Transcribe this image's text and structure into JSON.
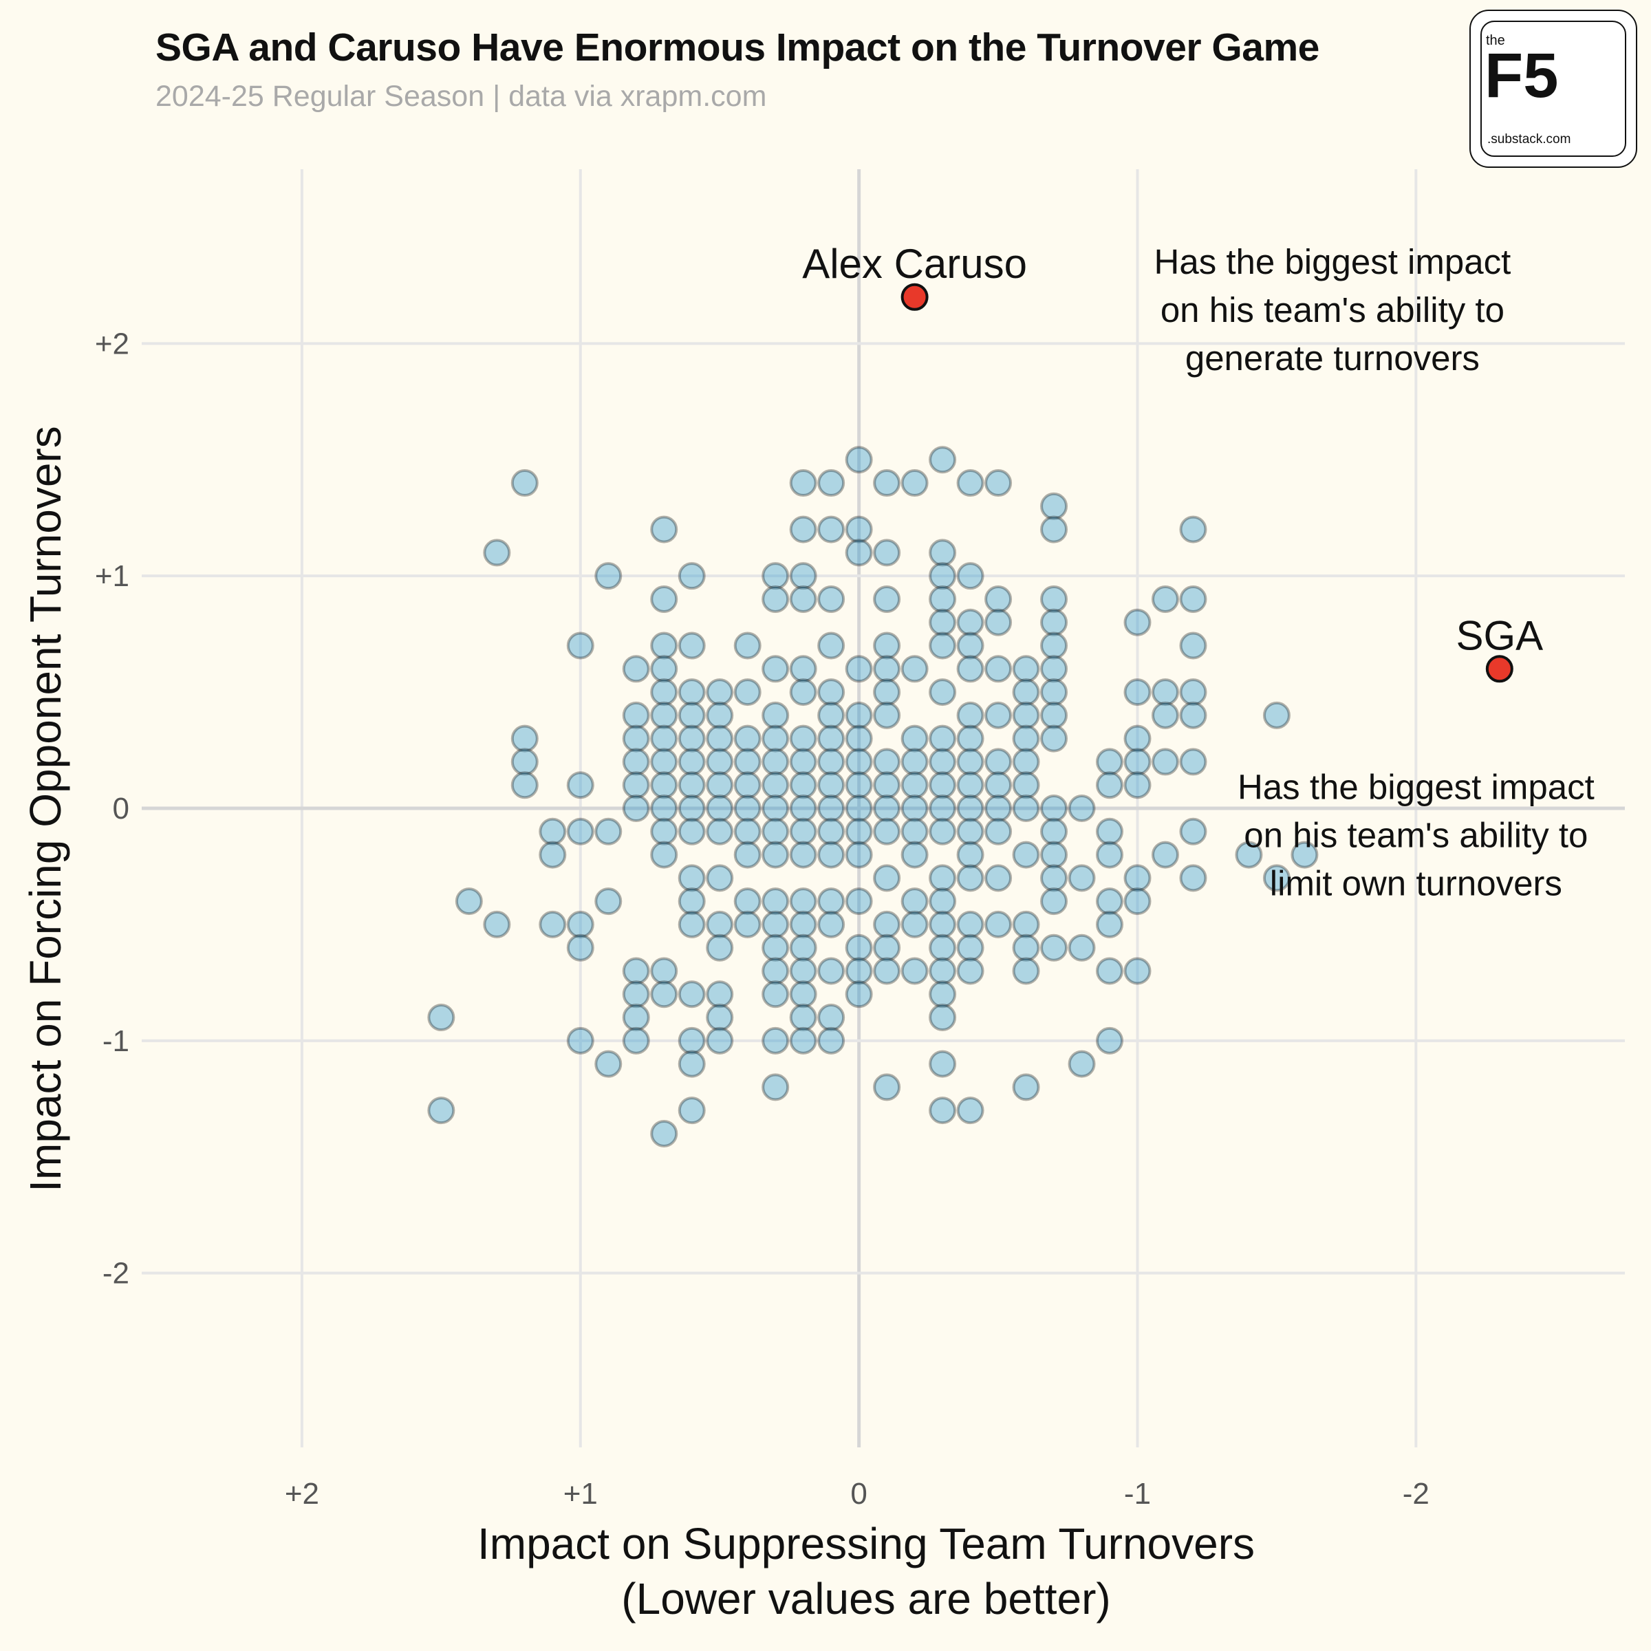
{
  "title": "SGA and Caruso Have Enormous Impact on the Turnover Game",
  "subtitle": "2024-25 Regular Season | data via xrapm.com",
  "logo": {
    "the": "the",
    "main": "F5",
    "sub": ".substack.com"
  },
  "chart_data": {
    "type": "scatter",
    "xlabel": [
      "Impact on Suppressing Team Turnovers",
      "(Lower values are better)"
    ],
    "ylabel": "Impact on Forcing Opponent Turnovers",
    "x_reversed": true,
    "xlim": [
      2.6,
      -2.75
    ],
    "ylim": [
      -2.75,
      2.75
    ],
    "x_ticks": [
      2,
      1,
      0,
      -1,
      -2
    ],
    "x_tick_labels": [
      "+2",
      "+1",
      "0",
      "-1",
      "-2"
    ],
    "y_ticks": [
      2,
      1,
      0,
      -1,
      -2
    ],
    "y_tick_labels": [
      "+2",
      "+1",
      "0",
      "-1",
      "-2"
    ],
    "grid": true,
    "colors": {
      "players": "#1B8FCB",
      "highlight": "#E8392A",
      "grid": "#E6E6E6",
      "zero": "#D6D6D6"
    },
    "series": [
      {
        "points": [
          [
            1.2,
            1.4
          ],
          [
            1.3,
            1.1
          ],
          [
            1.2,
            0.3
          ],
          [
            1.2,
            0.2
          ],
          [
            1.2,
            0.1
          ],
          [
            1.1,
            -0.1
          ],
          [
            1.1,
            -0.2
          ],
          [
            1.1,
            -0.5
          ],
          [
            1.3,
            -0.5
          ],
          [
            1.4,
            -0.4
          ],
          [
            1.5,
            -0.9
          ],
          [
            1.5,
            -1.3
          ],
          [
            1.0,
            0.7
          ],
          [
            1.0,
            0.1
          ],
          [
            1.0,
            -0.1
          ],
          [
            1.0,
            -0.5
          ],
          [
            1.0,
            -0.6
          ],
          [
            1.0,
            -1.0
          ],
          [
            0.9,
            1.0
          ],
          [
            0.9,
            -0.1
          ],
          [
            0.9,
            -0.4
          ],
          [
            0.9,
            -1.1
          ],
          [
            0.8,
            0.6
          ],
          [
            0.8,
            0.4
          ],
          [
            0.8,
            0.3
          ],
          [
            0.8,
            0.2
          ],
          [
            0.8,
            0.1
          ],
          [
            0.8,
            0.0
          ],
          [
            0.8,
            -0.7
          ],
          [
            0.8,
            -0.8
          ],
          [
            0.8,
            -0.9
          ],
          [
            0.8,
            -1.0
          ],
          [
            0.7,
            1.2
          ],
          [
            0.7,
            0.9
          ],
          [
            0.7,
            0.7
          ],
          [
            0.7,
            0.6
          ],
          [
            0.7,
            0.5
          ],
          [
            0.7,
            0.4
          ],
          [
            0.7,
            0.3
          ],
          [
            0.7,
            0.2
          ],
          [
            0.7,
            0.1
          ],
          [
            0.7,
            0.0
          ],
          [
            0.7,
            -0.1
          ],
          [
            0.7,
            -0.2
          ],
          [
            0.7,
            -0.7
          ],
          [
            0.7,
            -0.8
          ],
          [
            0.7,
            -1.4
          ],
          [
            0.6,
            1.0
          ],
          [
            0.6,
            0.7
          ],
          [
            0.6,
            0.5
          ],
          [
            0.6,
            0.4
          ],
          [
            0.6,
            0.3
          ],
          [
            0.6,
            0.2
          ],
          [
            0.6,
            0.1
          ],
          [
            0.6,
            0.0
          ],
          [
            0.6,
            -0.1
          ],
          [
            0.6,
            -0.3
          ],
          [
            0.6,
            -0.4
          ],
          [
            0.6,
            -0.5
          ],
          [
            0.6,
            -0.8
          ],
          [
            0.6,
            -1.0
          ],
          [
            0.6,
            -1.1
          ],
          [
            0.6,
            -1.3
          ],
          [
            0.5,
            0.5
          ],
          [
            0.5,
            0.4
          ],
          [
            0.5,
            0.3
          ],
          [
            0.5,
            0.2
          ],
          [
            0.5,
            0.1
          ],
          [
            0.5,
            0.0
          ],
          [
            0.5,
            -0.1
          ],
          [
            0.5,
            -0.3
          ],
          [
            0.5,
            -0.5
          ],
          [
            0.5,
            -0.6
          ],
          [
            0.5,
            -0.8
          ],
          [
            0.5,
            -0.9
          ],
          [
            0.5,
            -1.0
          ],
          [
            0.4,
            0.7
          ],
          [
            0.4,
            0.5
          ],
          [
            0.4,
            0.3
          ],
          [
            0.4,
            0.2
          ],
          [
            0.4,
            0.1
          ],
          [
            0.4,
            0.0
          ],
          [
            0.4,
            -0.1
          ],
          [
            0.4,
            -0.2
          ],
          [
            0.4,
            -0.4
          ],
          [
            0.4,
            -0.5
          ],
          [
            0.3,
            1.0
          ],
          [
            0.3,
            0.9
          ],
          [
            0.3,
            0.6
          ],
          [
            0.3,
            0.4
          ],
          [
            0.3,
            0.3
          ],
          [
            0.3,
            0.2
          ],
          [
            0.3,
            0.1
          ],
          [
            0.3,
            0.0
          ],
          [
            0.3,
            -0.1
          ],
          [
            0.3,
            -0.2
          ],
          [
            0.3,
            -0.4
          ],
          [
            0.3,
            -0.5
          ],
          [
            0.3,
            -0.6
          ],
          [
            0.3,
            -0.7
          ],
          [
            0.3,
            -0.8
          ],
          [
            0.3,
            -1.0
          ],
          [
            0.3,
            -1.2
          ],
          [
            0.2,
            1.4
          ],
          [
            0.2,
            1.2
          ],
          [
            0.2,
            1.0
          ],
          [
            0.2,
            0.9
          ],
          [
            0.2,
            0.6
          ],
          [
            0.2,
            0.5
          ],
          [
            0.2,
            0.3
          ],
          [
            0.2,
            0.2
          ],
          [
            0.2,
            0.1
          ],
          [
            0.2,
            0.0
          ],
          [
            0.2,
            -0.1
          ],
          [
            0.2,
            -0.2
          ],
          [
            0.2,
            -0.4
          ],
          [
            0.2,
            -0.5
          ],
          [
            0.2,
            -0.6
          ],
          [
            0.2,
            -0.7
          ],
          [
            0.2,
            -0.8
          ],
          [
            0.2,
            -0.9
          ],
          [
            0.2,
            -1.0
          ],
          [
            0.1,
            1.4
          ],
          [
            0.1,
            1.2
          ],
          [
            0.1,
            0.9
          ],
          [
            0.1,
            0.7
          ],
          [
            0.1,
            0.5
          ],
          [
            0.1,
            0.4
          ],
          [
            0.1,
            0.3
          ],
          [
            0.1,
            0.2
          ],
          [
            0.1,
            0.1
          ],
          [
            0.1,
            0.0
          ],
          [
            0.1,
            -0.1
          ],
          [
            0.1,
            -0.2
          ],
          [
            0.1,
            -0.4
          ],
          [
            0.1,
            -0.5
          ],
          [
            0.1,
            -0.7
          ],
          [
            0.1,
            -0.9
          ],
          [
            0.1,
            -1.0
          ],
          [
            0.0,
            1.5
          ],
          [
            0.0,
            1.2
          ],
          [
            0.0,
            1.1
          ],
          [
            0.0,
            0.6
          ],
          [
            0.0,
            0.4
          ],
          [
            0.0,
            0.3
          ],
          [
            0.0,
            0.2
          ],
          [
            0.0,
            0.1
          ],
          [
            0.0,
            0.0
          ],
          [
            0.0,
            -0.1
          ],
          [
            0.0,
            -0.2
          ],
          [
            0.0,
            -0.4
          ],
          [
            0.0,
            -0.6
          ],
          [
            0.0,
            -0.7
          ],
          [
            0.0,
            -0.8
          ],
          [
            -0.1,
            1.4
          ],
          [
            -0.1,
            1.1
          ],
          [
            -0.1,
            0.9
          ],
          [
            -0.1,
            0.7
          ],
          [
            -0.1,
            0.6
          ],
          [
            -0.1,
            0.5
          ],
          [
            -0.1,
            0.4
          ],
          [
            -0.1,
            0.2
          ],
          [
            -0.1,
            0.1
          ],
          [
            -0.1,
            0.0
          ],
          [
            -0.1,
            -0.1
          ],
          [
            -0.1,
            -0.3
          ],
          [
            -0.1,
            -0.5
          ],
          [
            -0.1,
            -0.6
          ],
          [
            -0.1,
            -0.7
          ],
          [
            -0.1,
            -1.2
          ],
          [
            -0.2,
            1.4
          ],
          [
            -0.2,
            0.6
          ],
          [
            -0.2,
            0.3
          ],
          [
            -0.2,
            0.2
          ],
          [
            -0.2,
            0.1
          ],
          [
            -0.2,
            0.0
          ],
          [
            -0.2,
            -0.1
          ],
          [
            -0.2,
            -0.2
          ],
          [
            -0.2,
            -0.4
          ],
          [
            -0.2,
            -0.5
          ],
          [
            -0.2,
            -0.7
          ],
          [
            -0.3,
            1.5
          ],
          [
            -0.3,
            1.1
          ],
          [
            -0.3,
            1.0
          ],
          [
            -0.3,
            0.9
          ],
          [
            -0.3,
            0.8
          ],
          [
            -0.3,
            0.7
          ],
          [
            -0.3,
            0.5
          ],
          [
            -0.3,
            0.3
          ],
          [
            -0.3,
            0.2
          ],
          [
            -0.3,
            0.1
          ],
          [
            -0.3,
            0.0
          ],
          [
            -0.3,
            -0.1
          ],
          [
            -0.3,
            -0.3
          ],
          [
            -0.3,
            -0.4
          ],
          [
            -0.3,
            -0.5
          ],
          [
            -0.3,
            -0.6
          ],
          [
            -0.3,
            -0.7
          ],
          [
            -0.3,
            -0.8
          ],
          [
            -0.3,
            -0.9
          ],
          [
            -0.3,
            -1.1
          ],
          [
            -0.3,
            -1.3
          ],
          [
            -0.4,
            1.4
          ],
          [
            -0.4,
            1.0
          ],
          [
            -0.4,
            0.8
          ],
          [
            -0.4,
            0.7
          ],
          [
            -0.4,
            0.6
          ],
          [
            -0.4,
            0.4
          ],
          [
            -0.4,
            0.3
          ],
          [
            -0.4,
            0.2
          ],
          [
            -0.4,
            0.1
          ],
          [
            -0.4,
            0.0
          ],
          [
            -0.4,
            -0.1
          ],
          [
            -0.4,
            -0.2
          ],
          [
            -0.4,
            -0.3
          ],
          [
            -0.4,
            -0.5
          ],
          [
            -0.4,
            -0.6
          ],
          [
            -0.4,
            -0.7
          ],
          [
            -0.4,
            -1.3
          ],
          [
            -0.5,
            1.4
          ],
          [
            -0.5,
            0.9
          ],
          [
            -0.5,
            0.8
          ],
          [
            -0.5,
            0.6
          ],
          [
            -0.5,
            0.4
          ],
          [
            -0.5,
            0.2
          ],
          [
            -0.5,
            0.1
          ],
          [
            -0.5,
            0.0
          ],
          [
            -0.5,
            -0.1
          ],
          [
            -0.5,
            -0.3
          ],
          [
            -0.5,
            -0.5
          ],
          [
            -0.6,
            0.6
          ],
          [
            -0.6,
            0.5
          ],
          [
            -0.6,
            0.4
          ],
          [
            -0.6,
            0.3
          ],
          [
            -0.6,
            0.2
          ],
          [
            -0.6,
            0.1
          ],
          [
            -0.6,
            0.0
          ],
          [
            -0.6,
            -0.2
          ],
          [
            -0.6,
            -0.5
          ],
          [
            -0.6,
            -0.6
          ],
          [
            -0.6,
            -0.7
          ],
          [
            -0.6,
            -1.2
          ],
          [
            -0.7,
            1.3
          ],
          [
            -0.7,
            1.2
          ],
          [
            -0.7,
            0.9
          ],
          [
            -0.7,
            0.8
          ],
          [
            -0.7,
            0.7
          ],
          [
            -0.7,
            0.6
          ],
          [
            -0.7,
            0.5
          ],
          [
            -0.7,
            0.4
          ],
          [
            -0.7,
            0.3
          ],
          [
            -0.7,
            0.0
          ],
          [
            -0.7,
            -0.1
          ],
          [
            -0.7,
            -0.2
          ],
          [
            -0.7,
            -0.3
          ],
          [
            -0.7,
            -0.4
          ],
          [
            -0.7,
            -0.6
          ],
          [
            -0.8,
            0.0
          ],
          [
            -0.8,
            -0.3
          ],
          [
            -0.8,
            -0.6
          ],
          [
            -0.8,
            -1.1
          ],
          [
            -0.9,
            0.2
          ],
          [
            -0.9,
            0.1
          ],
          [
            -0.9,
            -0.1
          ],
          [
            -0.9,
            -0.2
          ],
          [
            -0.9,
            -0.4
          ],
          [
            -0.9,
            -0.5
          ],
          [
            -0.9,
            -0.7
          ],
          [
            -0.9,
            -1.0
          ],
          [
            -1.0,
            0.8
          ],
          [
            -1.0,
            0.5
          ],
          [
            -1.0,
            0.3
          ],
          [
            -1.0,
            0.2
          ],
          [
            -1.0,
            0.1
          ],
          [
            -1.0,
            -0.3
          ],
          [
            -1.0,
            -0.4
          ],
          [
            -1.0,
            -0.7
          ],
          [
            -1.1,
            0.9
          ],
          [
            -1.1,
            0.5
          ],
          [
            -1.1,
            0.4
          ],
          [
            -1.1,
            0.2
          ],
          [
            -1.1,
            -0.2
          ],
          [
            -1.2,
            1.2
          ],
          [
            -1.2,
            0.9
          ],
          [
            -1.2,
            0.7
          ],
          [
            -1.2,
            0.5
          ],
          [
            -1.2,
            0.4
          ],
          [
            -1.2,
            0.2
          ],
          [
            -1.2,
            -0.1
          ],
          [
            -1.2,
            -0.3
          ],
          [
            -1.4,
            -0.2
          ],
          [
            -1.5,
            0.4
          ],
          [
            -1.5,
            -0.3
          ],
          [
            -1.6,
            -0.2
          ]
        ]
      },
      {
        "highlight": true,
        "points": [
          {
            "label": "Alex Caruso",
            "x": -0.2,
            "y": 2.2
          },
          {
            "label": "SGA",
            "x": -2.3,
            "y": 0.6
          }
        ]
      }
    ],
    "annotations": [
      {
        "lines": [
          "Has the biggest impact",
          "on his team's ability to",
          "generate turnovers"
        ],
        "x": -1.7,
        "y": 2.3
      },
      {
        "lines": [
          "Has the biggest impact",
          "on his team's ability to",
          "limit own turnovers"
        ],
        "x": -2.0,
        "y": 0.04
      }
    ]
  }
}
